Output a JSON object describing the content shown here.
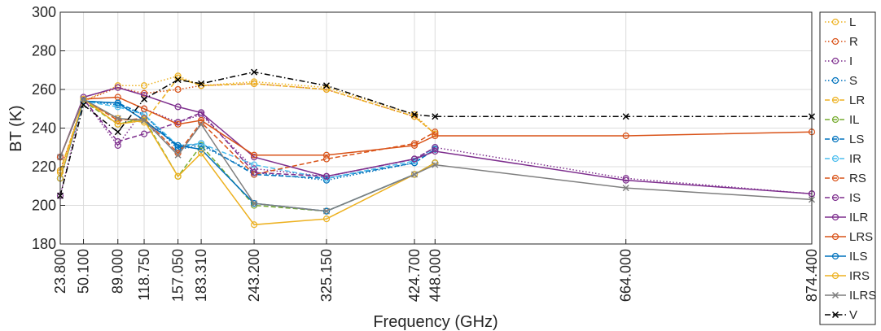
{
  "chart_data": {
    "type": "line",
    "title": "",
    "xlabel": "Frequency (GHz)",
    "ylabel": "BT (K)",
    "ylim": [
      180,
      300
    ],
    "yticks": [
      180,
      200,
      220,
      240,
      260,
      280,
      300
    ],
    "xticks": [
      "23.800",
      "50.100",
      "89.000",
      "118.750",
      "157.050",
      "183.310",
      "243.200",
      "325.150",
      "424.700",
      "448.000",
      "664.000",
      "874.400"
    ],
    "grid": true,
    "legend_position": "right-outside",
    "series": [
      {
        "name": "L",
        "color": "#EDB120",
        "dash": "dotted",
        "marker": "o",
        "x": [
          23.8,
          50.1,
          89.0,
          118.75,
          157.05,
          183.31,
          243.2,
          325.15,
          424.7,
          448.0
        ],
        "y": [
          217,
          254,
          262,
          262,
          267,
          262,
          264,
          261,
          247,
          237
        ]
      },
      {
        "name": "R",
        "color": "#D95319",
        "dash": "dotted",
        "marker": "o",
        "x": [
          23.8,
          50.1,
          89.0,
          118.75,
          157.05,
          183.31,
          243.2,
          325.15,
          424.7,
          448.0
        ],
        "y": [
          218,
          254,
          261,
          258,
          260,
          262,
          263,
          260,
          246,
          237
        ]
      },
      {
        "name": "I",
        "color": "#7E2F8E",
        "dash": "dotted",
        "marker": "o",
        "x": [
          23.8,
          50.1,
          89.0,
          118.75,
          157.05,
          183.31,
          243.2,
          325.15,
          424.7,
          448.0,
          664.0,
          874.4
        ],
        "y": [
          205,
          255,
          231,
          250,
          243,
          247,
          219,
          215,
          224,
          230,
          214,
          206
        ]
      },
      {
        "name": "S",
        "color": "#0072BD",
        "dash": "dotted",
        "marker": "o",
        "x": [
          23.8,
          50.1,
          89.0,
          118.75,
          157.05,
          183.31,
          243.2,
          325.15,
          424.7,
          448.0
        ],
        "y": [
          214,
          254,
          252,
          247,
          229,
          231,
          217,
          213,
          222,
          229
        ]
      },
      {
        "name": "LR",
        "color": "#EDB120",
        "dash": "dashed",
        "marker": "o",
        "x": [
          23.8,
          50.1,
          89.0,
          118.75,
          157.05,
          183.31,
          243.2,
          325.15,
          424.7,
          448.0
        ],
        "y": [
          218,
          254,
          245,
          243,
          266,
          262,
          263,
          260,
          246,
          237
        ]
      },
      {
        "name": "IL",
        "color": "#77AC30",
        "dash": "dashed",
        "marker": "o",
        "x": [
          23.8,
          50.1,
          89.0,
          118.75,
          157.05,
          183.31,
          243.2,
          325.15,
          424.7,
          448.0
        ],
        "y": [
          214,
          254,
          242,
          245,
          215,
          231,
          200,
          197,
          216,
          222
        ]
      },
      {
        "name": "LS",
        "color": "#0072BD",
        "dash": "dashed",
        "marker": "o",
        "x": [
          23.8,
          50.1,
          89.0,
          118.75,
          157.05,
          183.31,
          243.2,
          325.15,
          424.7,
          448.0
        ],
        "y": [
          214,
          254,
          253,
          247,
          230,
          232,
          216,
          214,
          222,
          229
        ]
      },
      {
        "name": "IR",
        "color": "#4DBEEE",
        "dash": "dashed",
        "marker": "o",
        "x": [
          23.8,
          50.1,
          89.0,
          118.75,
          157.05,
          183.31,
          243.2,
          325.15,
          424.7,
          448.0
        ],
        "y": [
          214,
          254,
          251,
          247,
          231,
          232,
          221,
          214,
          223,
          230
        ]
      },
      {
        "name": "RS",
        "color": "#D95319",
        "dash": "dashed",
        "marker": "o",
        "x": [
          23.8,
          50.1,
          89.0,
          118.75,
          157.05,
          183.31,
          243.2,
          325.15,
          424.7,
          448.0
        ],
        "y": [
          225,
          255,
          244,
          245,
          227,
          243,
          216,
          224,
          232,
          238
        ]
      },
      {
        "name": "IS",
        "color": "#7E2F8E",
        "dash": "dashed",
        "marker": "o",
        "x": [
          23.8,
          50.1,
          89.0,
          118.75,
          157.05,
          183.31,
          243.2,
          325.15,
          424.7,
          448.0
        ],
        "y": [
          225,
          255,
          233,
          237,
          243,
          248,
          217,
          215,
          224,
          230
        ]
      },
      {
        "name": "ILR",
        "color": "#7E2F8E",
        "dash": "solid",
        "marker": "o",
        "x": [
          23.8,
          50.1,
          89.0,
          118.75,
          157.05,
          183.31,
          243.2,
          325.15,
          424.7,
          448.0,
          664.0,
          874.4
        ],
        "y": [
          225,
          256,
          261,
          257,
          251,
          248,
          225,
          215,
          224,
          228,
          213,
          206
        ]
      },
      {
        "name": "LRS",
        "color": "#D95319",
        "dash": "solid",
        "marker": "o",
        "x": [
          23.8,
          50.1,
          89.0,
          118.75,
          157.05,
          183.31,
          243.2,
          325.15,
          424.7,
          448.0,
          664.0,
          874.4
        ],
        "y": [
          225,
          255,
          256,
          250,
          242,
          244,
          226,
          226,
          231,
          236,
          236,
          238
        ]
      },
      {
        "name": "ILS",
        "color": "#0072BD",
        "dash": "solid",
        "marker": "o",
        "x": [
          23.8,
          50.1,
          89.0,
          118.75,
          157.05,
          183.31,
          243.2,
          325.15,
          424.7,
          448.0
        ],
        "y": [
          214,
          254,
          253,
          244,
          231,
          229,
          201,
          197,
          216,
          222
        ]
      },
      {
        "name": "IRS",
        "color": "#EDB120",
        "dash": "solid",
        "marker": "o",
        "x": [
          23.8,
          50.1,
          89.0,
          118.75,
          157.05,
          183.31,
          243.2,
          325.15,
          424.7,
          448.0
        ],
        "y": [
          214,
          255,
          242,
          244,
          215,
          227,
          190,
          193,
          216,
          222
        ]
      },
      {
        "name": "ILRS",
        "color": "#7F7F7F",
        "dash": "solid",
        "marker": "x",
        "x": [
          23.8,
          50.1,
          89.0,
          118.75,
          157.05,
          183.31,
          243.2,
          325.15,
          424.7,
          448.0,
          664.0,
          874.4
        ],
        "y": [
          225,
          255,
          245,
          244,
          226,
          242,
          201,
          197,
          216,
          221,
          209,
          203
        ]
      },
      {
        "name": "V",
        "color": "#000000",
        "dash": "dashdot",
        "marker": "x",
        "x": [
          23.8,
          50.1,
          89.0,
          118.75,
          157.05,
          183.31,
          243.2,
          325.15,
          424.7,
          448.0,
          664.0,
          874.4
        ],
        "y": [
          205,
          252,
          238,
          255,
          265,
          263,
          269,
          262,
          247,
          246,
          246,
          246
        ]
      }
    ]
  }
}
